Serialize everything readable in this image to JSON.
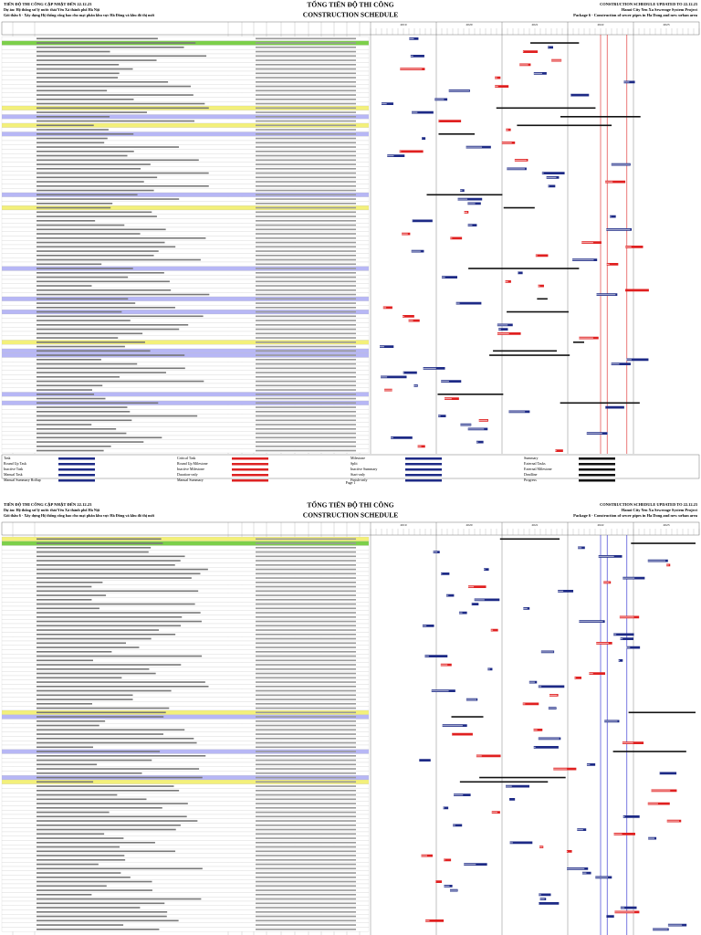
{
  "pages": [
    {
      "header": {
        "left": [
          "TIẾN ĐỘ THI CÔNG CẬP NHẬT ĐẾN 22.12.23",
          "Dự án: Hệ thống xử lý nước thải Yên Xá thành phố Hà Nội",
          "Gói thầu 6 - Xây dựng Hệ thống cống bao cho mạt phân khu vực Hà Đông và khu đô thị mới"
        ],
        "center": [
          "TỔNG TIẾN ĐỘ THI CÔNG",
          "CONSTRUCTION SCHEDULE"
        ],
        "right": [
          "CONSTRUCTION SCHEDULE UPDATED TO 22.12.23",
          "Hanoi City Yen Xa Sewerage System Project",
          "Package 6 - Construction of sewer pipes in Ha Dong and new urban area"
        ],
        "years": [
          "2019",
          "2020",
          "2021",
          "2022",
          "2023"
        ]
      },
      "legend": [
        [
          "Task",
          "Round Up Task",
          "Inactive Task",
          "Manual Task",
          "Manual Summary Rollup"
        ],
        [
          "Critical Task",
          "Round Up Milestone",
          "Inactive Milestone",
          "Duration-only",
          "Manual Summary"
        ],
        [
          "Milestone",
          "Split",
          "Inactive Summary",
          "Start-only",
          "Finish-only"
        ],
        [
          "Summary",
          "External Tasks",
          "External Milestone",
          "Deadline",
          "Progress"
        ]
      ],
      "footer": "Page 1"
    },
    {
      "header": {
        "left": [
          "TIẾN ĐỘ THI CÔNG CẬP NHẬT ĐẾN 22.12.23",
          "Dự án: Hệ thống xử lý nước thải Yên Xá thành phố Hà Nội",
          "Gói thầu 6 - Xây dựng Hệ thống cống bao cho mạt phân khu vực Hà Đông và khu đô thị mới"
        ],
        "center": [
          "TỔNG TIẾN ĐỘ THI CÔNG",
          "CONSTRUCTION SCHEDULE"
        ],
        "right": [
          "CONSTRUCTION SCHEDULE UPDATED TO 22.12.23",
          "Hanoi City Yen Xa Sewerage System Project",
          "Package 6 - Construction of sewer pipes in Ha Dong and new urban area"
        ],
        "years": [
          "2019",
          "2020",
          "2021",
          "2022",
          "2023"
        ]
      }
    }
  ]
}
